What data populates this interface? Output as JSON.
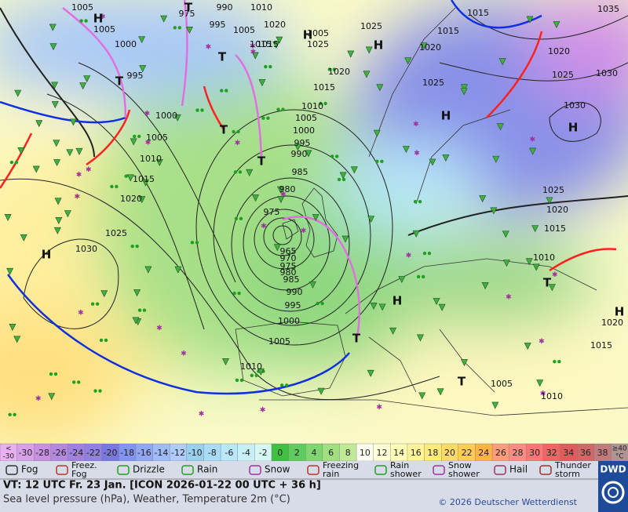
{
  "map": {
    "pressure_labels": [
      "1005",
      "1005",
      "1000",
      "995",
      "1000",
      "1005",
      "1010",
      "1015",
      "1020",
      "1025",
      "1030",
      "975",
      "990",
      "1010",
      "995",
      "1005",
      "1020",
      "1015",
      "1005",
      "1025",
      "1025",
      "1020",
      "1015",
      "1010",
      "1005",
      "1000",
      "995",
      "990",
      "985",
      "980",
      "975",
      "965",
      "970",
      "975",
      "980",
      "985",
      "990",
      "995",
      "1000",
      "1005",
      "1010",
      "1015",
      "1015",
      "1035",
      "1015",
      "1020",
      "1020",
      "1025",
      "1025",
      "1030",
      "1030",
      "1025",
      "1020",
      "1015",
      "1010",
      "1020",
      "1015",
      "1005",
      "1010"
    ],
    "centers": [
      "H",
      "T",
      "T",
      "T",
      "T",
      "T",
      "H",
      "H",
      "H",
      "H",
      "H",
      "H",
      "H",
      "T",
      "T",
      "T"
    ]
  },
  "color_scale": {
    "low_label": [
      "<",
      "-30"
    ],
    "low_color": "#e8b0f0",
    "ticks": [
      -30,
      -28,
      -26,
      -24,
      -22,
      -20,
      -18,
      -16,
      -14,
      -12,
      -10,
      -8,
      -6,
      -4,
      -2,
      0,
      2,
      4,
      6,
      8,
      10,
      12,
      14,
      16,
      18,
      20,
      22,
      24,
      26,
      28,
      30,
      32,
      34,
      36,
      38
    ],
    "colors": [
      "#d8a0e8",
      "#c890e0",
      "#b488dc",
      "#a080e0",
      "#9080e8",
      "#7878e0",
      "#8094f0",
      "#90a8f4",
      "#a0bcf8",
      "#b0ccfc",
      "#98d0f0",
      "#a8dcf8",
      "#b8e8fa",
      "#c8f0f8",
      "#d8f8f4",
      "#40c040",
      "#60cc60",
      "#80d670",
      "#a0e080",
      "#c0ea98",
      "#fffff4",
      "#ffffd8",
      "#ffffb8",
      "#fff498",
      "#ffec78",
      "#ffdc64",
      "#ffcc54",
      "#ffb444",
      "#ff9c7c",
      "#ff8c84",
      "#ff7474",
      "#f06464",
      "#e05c5c",
      "#d06868",
      "#c07c7c"
    ],
    "high_label": [
      "≥40",
      "°C"
    ],
    "high_color": "#b09494"
  },
  "legend": [
    [
      "Fog"
    ],
    [
      "Freez.",
      "Fog"
    ],
    [
      "Drizzle"
    ],
    [
      "Rain"
    ],
    [
      "Snow"
    ],
    [
      "Freezing",
      "rain"
    ],
    [
      "Rain",
      "shower"
    ],
    [
      "Snow",
      "shower"
    ],
    [
      "Hail"
    ],
    [
      "Thunder",
      "storm"
    ]
  ],
  "footer": {
    "valid": "VT: 12 UTC Fr.  23 Jan. [ICON 2026-01-22  00 UTC + 36 h]",
    "subtitle": "Sea level pressure (hPa), Weather, Temperature 2m (°C)",
    "copyright": "© 2026 Deutscher Wetterdienst",
    "logo": "DWD"
  }
}
